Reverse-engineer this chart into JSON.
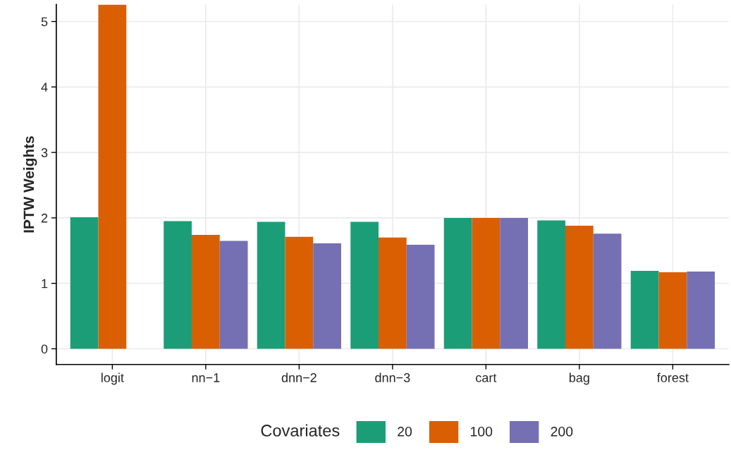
{
  "chart_data": {
    "type": "bar",
    "ylabel": "IPTW Weights",
    "legend_title": "Covariates",
    "categories": [
      "logit",
      "nn−1",
      "dnn−2",
      "dnn−3",
      "cart",
      "bag",
      "forest"
    ],
    "series": [
      {
        "name": "20",
        "color": "#1b9e77",
        "values": [
          2.01,
          1.95,
          1.94,
          1.94,
          2.0,
          1.96,
          1.19
        ]
      },
      {
        "name": "100",
        "color": "#d95f02",
        "values": [
          5.26,
          1.74,
          1.71,
          1.7,
          2.0,
          1.88,
          1.17
        ]
      },
      {
        "name": "200",
        "color": "#7570b3",
        "values": [
          null,
          1.65,
          1.61,
          1.59,
          2.0,
          1.76,
          1.18
        ]
      }
    ],
    "ylim": [
      -0.24,
      5.26
    ],
    "yticks": [
      0,
      1,
      2,
      3,
      4,
      5
    ],
    "grid": true,
    "legend": "bottom"
  }
}
